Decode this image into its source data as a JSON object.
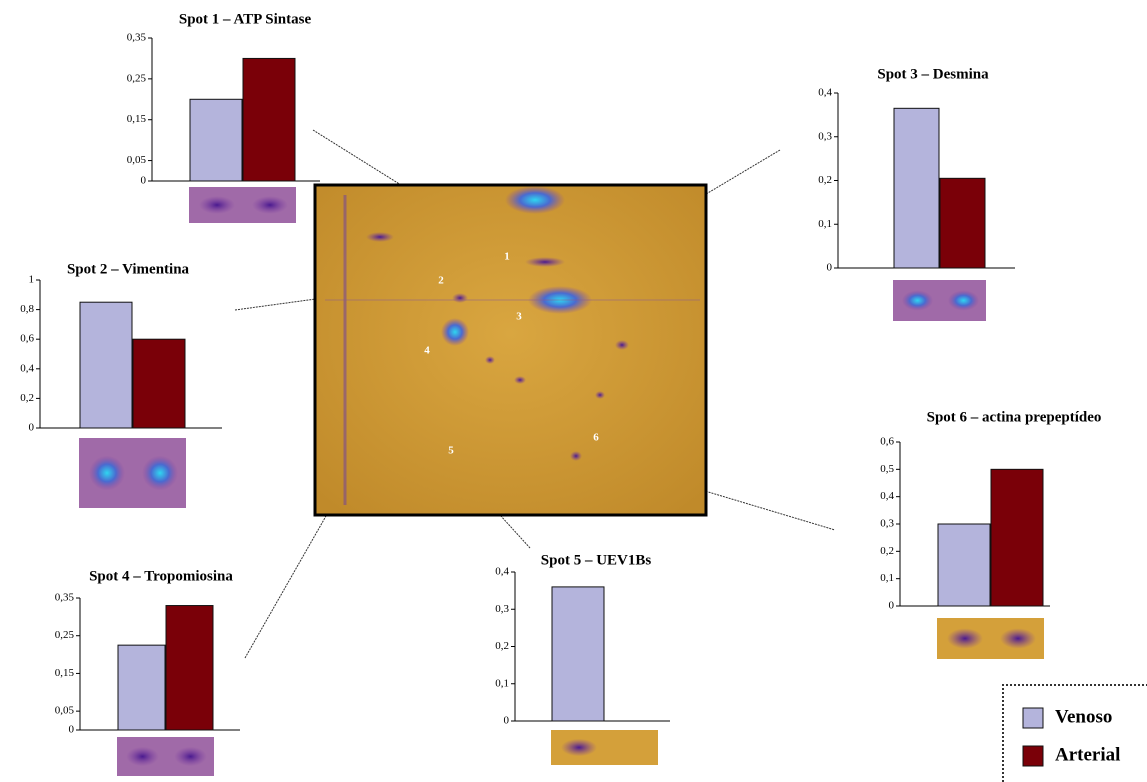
{
  "legend": {
    "series": [
      {
        "name": "Venoso",
        "color": "#b4b4dc"
      },
      {
        "name": "Arterial",
        "color": "#7a0008"
      }
    ]
  },
  "gel": {
    "labels": [
      "1",
      "2",
      "3",
      "4",
      "5",
      "6"
    ]
  },
  "chart_data": [
    {
      "type": "bar",
      "title": "Spot 1 – ATP Sintase",
      "values": [
        0.2,
        0.3
      ],
      "ylim": [
        0,
        0.35
      ],
      "yticks": [
        0,
        {
          "value": 0.05,
          "label": "0,05"
        },
        {
          "value": 0.15,
          "label": "0,15"
        },
        {
          "value": 0.25,
          "label": "0,25"
        },
        {
          "value": 0.35,
          "label": "0,35"
        }
      ]
    },
    {
      "type": "bar",
      "title": "Spot 2 – Vimentina",
      "values": [
        0.85,
        0.6
      ],
      "ylim": [
        0,
        1
      ],
      "yticks": [
        0,
        {
          "value": 0.2,
          "label": "0,2"
        },
        {
          "value": 0.4,
          "label": "0,4"
        },
        {
          "value": 0.6,
          "label": "0,6"
        },
        {
          "value": 0.8,
          "label": "0,8"
        },
        1
      ]
    },
    {
      "type": "bar",
      "title": "Spot 3 – Desmina",
      "values": [
        0.365,
        0.205
      ],
      "ylim": [
        0,
        0.4
      ],
      "yticks": [
        0,
        {
          "value": 0.1,
          "label": "0,1"
        },
        {
          "value": 0.2,
          "label": "0,2"
        },
        {
          "value": 0.3,
          "label": "0,3"
        },
        {
          "value": 0.4,
          "label": "0,4"
        }
      ]
    },
    {
      "type": "bar",
      "title": "Spot 4 – Tropomiosina",
      "values": [
        0.225,
        0.33
      ],
      "ylim": [
        0,
        0.35
      ],
      "yticks": [
        0,
        {
          "value": 0.05,
          "label": "0,05"
        },
        {
          "value": 0.15,
          "label": "0,15"
        },
        {
          "value": 0.25,
          "label": "0,25"
        },
        {
          "value": 0.35,
          "label": "0,35"
        }
      ]
    },
    {
      "type": "bar",
      "title": "Spot 5 – UEV1Bs",
      "values": [
        0.36,
        0
      ],
      "ylim": [
        0,
        0.4
      ],
      "yticks": [
        0,
        {
          "value": 0.1,
          "label": "0,1"
        },
        {
          "value": 0.2,
          "label": "0,2"
        },
        {
          "value": 0.3,
          "label": "0,3"
        },
        {
          "value": 0.4,
          "label": "0,4"
        }
      ]
    },
    {
      "type": "bar",
      "title": "Spot 6 – actina prepeptídeo",
      "values": [
        0.3,
        0.5
      ],
      "ylim": [
        0,
        0.6
      ],
      "yticks": [
        0,
        {
          "value": 0.1,
          "label": "0,1"
        },
        {
          "value": 0.2,
          "label": "0,2"
        },
        {
          "value": 0.3,
          "label": "0,3"
        },
        {
          "value": 0.4,
          "label": "0,4"
        },
        {
          "value": 0.5,
          "label": "0,5"
        },
        {
          "value": 0.6,
          "label": "0,6"
        }
      ]
    }
  ]
}
